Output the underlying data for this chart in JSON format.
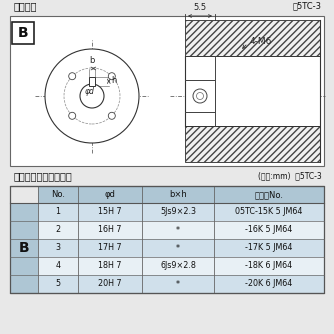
{
  "title_diagram": "軸穴形状",
  "ref_diagram": "囵5TC-3",
  "title_table": "軸穴形状コード一覧表",
  "unit_note": "(単位:mm)  表5TC-3",
  "headers": [
    "No.",
    "φd",
    "b×h",
    "コードNo."
  ],
  "rows": [
    [
      "1",
      "15H 7",
      "5Js9×2.3",
      "05TC-15K 5 JM64"
    ],
    [
      "2",
      "16H 7",
      "*",
      "-16K 5 JM64"
    ],
    [
      "3",
      "17H 7",
      "*",
      "-17K 5 JM64"
    ],
    [
      "4",
      "18H 7",
      "6Js9×2.8",
      "-18K 6 JM64"
    ],
    [
      "5",
      "20H 7",
      "*",
      "-20K 6 JM64"
    ]
  ],
  "bg_color": "#e8e8e8",
  "diagram_bg": "#ffffff",
  "table_header_bg": "#aec6d4",
  "table_row1_bg": "#d0e0eb",
  "table_row2_bg": "#e8f0f5",
  "table_b_bg": "#aec6d4",
  "border_color": "#666666",
  "text_color": "#111111",
  "dim_55": "5.5",
  "dim_4M6": "4-M6",
  "label_b": "b",
  "label_h": "h",
  "label_phid": "φd"
}
